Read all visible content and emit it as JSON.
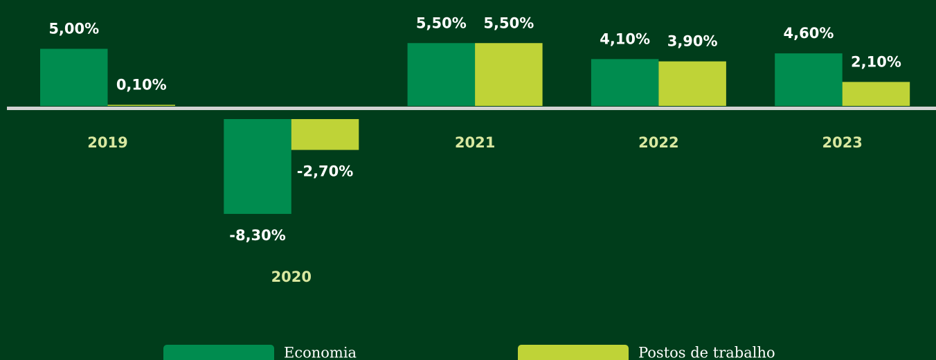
{
  "chart_data": {
    "type": "bar",
    "categories": [
      "2019",
      "2020",
      "2021",
      "2022",
      "2023"
    ],
    "series": [
      {
        "name": "Economia",
        "color": "#008c4f",
        "values": [
          5.0,
          -8.3,
          5.5,
          4.1,
          4.6
        ],
        "value_labels": [
          "5,00%",
          "-8,30%",
          "5,50%",
          "4,10%",
          "4,60%"
        ]
      },
      {
        "name": "Postos de trabalho",
        "color": "#bfd337",
        "values": [
          0.1,
          -2.7,
          5.5,
          3.9,
          2.1
        ],
        "value_labels": [
          "0,10%",
          "-2,70%",
          "5,50%",
          "3,90%",
          "2,10%"
        ]
      }
    ]
  }
}
